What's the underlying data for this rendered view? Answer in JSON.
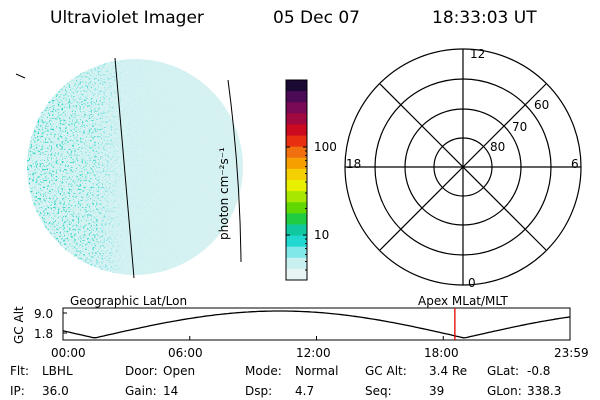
{
  "header": {
    "title": "Ultraviolet Imager",
    "date": "05 Dec 07",
    "time": "18:33:03 UT"
  },
  "colorbar": {
    "unit_label": "photon cm⁻²s⁻¹",
    "ticks": [
      {
        "label": "100",
        "value": 100
      },
      {
        "label": "10",
        "value": 10
      }
    ],
    "colors": [
      "#1a0a33",
      "#4b0a55",
      "#7a0a55",
      "#a00a40",
      "#cc0a20",
      "#e83010",
      "#f07010",
      "#f5a000",
      "#f5d000",
      "#e8f000",
      "#a8e800",
      "#60d800",
      "#20cc40",
      "#10c8a0",
      "#20d8d0",
      "#80e8e8",
      "#c8f0f0",
      "#e8f4f4"
    ]
  },
  "polar": {
    "mlt_labels": {
      "top": "12",
      "left": "18",
      "right": "6",
      "bottom": "0"
    },
    "lat_labels": [
      "60",
      "70",
      "80"
    ]
  },
  "altitude_plot": {
    "ylabel": "GC Alt",
    "yticks": [
      "9.0",
      "1.8"
    ],
    "left_title": "Geographic Lat/Lon",
    "right_title": "Apex MLat/MLT",
    "xticks": [
      "00:00",
      "06:00",
      "12:00",
      "18:00",
      "23:59"
    ],
    "current_time_hours": 18.55,
    "marker_color": "#e00000"
  },
  "footer": [
    [
      {
        "label": "Flt:",
        "value": "LBHL"
      },
      {
        "label": "Door:",
        "value": "Open"
      },
      {
        "label": "Mode:",
        "value": "Normal"
      },
      {
        "label": "GC Alt:",
        "value": "3.4 Re"
      },
      {
        "label": "GLat:",
        "value": "-0.8"
      }
    ],
    [
      {
        "label": "IP:",
        "value": "36.0"
      },
      {
        "label": "Gain:",
        "value": "14"
      },
      {
        "label": "Dsp:",
        "value": "4.7"
      },
      {
        "label": "Seq:",
        "value": "39"
      },
      {
        "label": "GLon:",
        "value": "338.3"
      }
    ]
  ]
}
